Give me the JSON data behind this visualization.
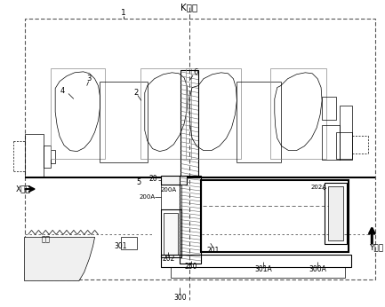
{
  "bg_color": "#ffffff",
  "line_color": "#000000",
  "labels": {
    "K_section": "K断面",
    "num_1": "1",
    "num_2": "2",
    "num_3": "3",
    "num_4": "4",
    "num_5": "5",
    "num_6": "6",
    "num_20": "20",
    "num_200A": "200A",
    "num_201": "201",
    "num_202": "202",
    "num_202A": "202A",
    "num_250": "250",
    "num_300": "300",
    "num_301": "301",
    "num_301A": "301A",
    "num_300A": "300A",
    "X_dir": "X方向",
    "Y_dir": "Y方向",
    "oil_surface": "油面"
  }
}
